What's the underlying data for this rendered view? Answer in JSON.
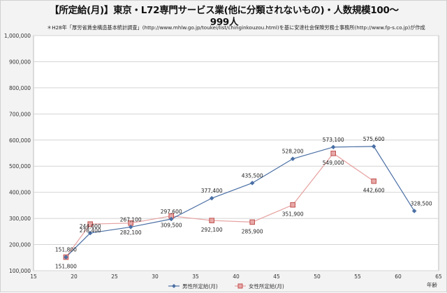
{
  "title_line1": "【所定給(月)】東京・L72専門サービス業(他に分類されないもの)・人数規模100～",
  "title_line2": "999人",
  "source_note": "＊H28年「厚労省賃金構造基本統計調査」(http://www.mhlw.go.jp/toukei/list/chinginkouzou.html)を基に安達社会保険労務士事務所(http://www.fp-s.co.jp)が作成",
  "colors": {
    "male": "#4a6fa5",
    "female": "#e6a0a0",
    "female_marker": "#c0504d"
  },
  "chart_data": {
    "type": "line",
    "title": "【所定給(月)】東京・L72専門サービス業(他に分類されないもの)・人数規模100～999人",
    "xlabel": "年齢",
    "ylabel": "",
    "xlim": [
      15,
      65
    ],
    "ylim": [
      100000,
      1000000
    ],
    "x_ticks": [
      "15",
      "20",
      "25",
      "30",
      "35",
      "40",
      "45",
      "50",
      "55",
      "60",
      "65"
    ],
    "y_ticks": [
      "100,000",
      "200,000",
      "300,000",
      "400,000",
      "500,000",
      "600,000",
      "700,000",
      "800,000",
      "900,000",
      "1,000,000"
    ],
    "grid": true,
    "legend_position": "bottom",
    "series": [
      {
        "name": "男性所定給(月)",
        "points": [
          {
            "x": 19,
            "y": 151800,
            "label": "151,800"
          },
          {
            "x": 22,
            "y": 244000,
            "label": "244,000"
          },
          {
            "x": 27,
            "y": 267100,
            "label": "267,100"
          },
          {
            "x": 32,
            "y": 297600,
            "label": "297,600"
          },
          {
            "x": 37,
            "y": 377400,
            "label": "377,400"
          },
          {
            "x": 42,
            "y": 435500,
            "label": "435,500"
          },
          {
            "x": 47,
            "y": 528200,
            "label": "528,200"
          },
          {
            "x": 52,
            "y": 573100,
            "label": "573,100"
          },
          {
            "x": 57,
            "y": 575600,
            "label": "575,600"
          },
          {
            "x": 62,
            "y": 328500,
            "label": "328,500"
          }
        ]
      },
      {
        "name": "女性所定給(月)",
        "points": [
          {
            "x": 19,
            "y": 151800,
            "label": "151,800"
          },
          {
            "x": 22,
            "y": 278400,
            "label": "278,400"
          },
          {
            "x": 27,
            "y": 282100,
            "label": "282,100"
          },
          {
            "x": 32,
            "y": 309500,
            "label": "309,500"
          },
          {
            "x": 37,
            "y": 292100,
            "label": "292,100"
          },
          {
            "x": 42,
            "y": 285900,
            "label": "285,900"
          },
          {
            "x": 47,
            "y": 351900,
            "label": "351,900"
          },
          {
            "x": 52,
            "y": 549000,
            "label": "549,000"
          },
          {
            "x": 57,
            "y": 442600,
            "label": "442,600"
          }
        ]
      }
    ]
  }
}
